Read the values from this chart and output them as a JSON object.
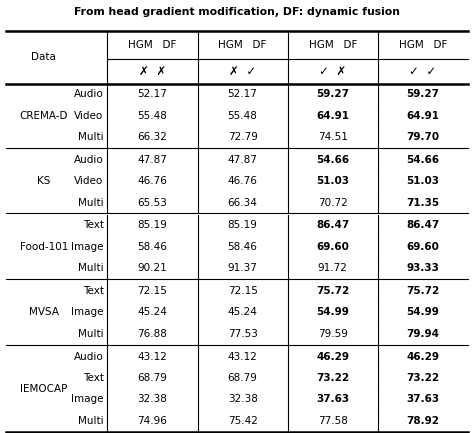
{
  "title": "From head gradient modification, DF: dynamic fusion",
  "col_groups": [
    "HGM  DF",
    "HGM  DF",
    "HGM  DF",
    "HGM  DF"
  ],
  "symbols_row": [
    "✗  ✗",
    "✗  ✓",
    "✓  ✗",
    "✓  ✓"
  ],
  "datasets": [
    {
      "name": "CREMA-D",
      "rows": [
        {
          "modality": "Audio",
          "vals": [
            "52.17",
            "52.17",
            "59.27",
            "59.27"
          ],
          "bold": [
            false,
            false,
            true,
            true
          ]
        },
        {
          "modality": "Video",
          "vals": [
            "55.48",
            "55.48",
            "64.91",
            "64.91"
          ],
          "bold": [
            false,
            false,
            true,
            true
          ]
        },
        {
          "modality": "Multi",
          "vals": [
            "66.32",
            "72.79",
            "74.51",
            "79.70"
          ],
          "bold": [
            false,
            false,
            false,
            true
          ]
        }
      ]
    },
    {
      "name": "KS",
      "rows": [
        {
          "modality": "Audio",
          "vals": [
            "47.87",
            "47.87",
            "54.66",
            "54.66"
          ],
          "bold": [
            false,
            false,
            true,
            true
          ]
        },
        {
          "modality": "Video",
          "vals": [
            "46.76",
            "46.76",
            "51.03",
            "51.03"
          ],
          "bold": [
            false,
            false,
            true,
            true
          ]
        },
        {
          "modality": "Multi",
          "vals": [
            "65.53",
            "66.34",
            "70.72",
            "71.35"
          ],
          "bold": [
            false,
            false,
            false,
            true
          ]
        }
      ]
    },
    {
      "name": "Food-101",
      "rows": [
        {
          "modality": "Text",
          "vals": [
            "85.19",
            "85.19",
            "86.47",
            "86.47"
          ],
          "bold": [
            false,
            false,
            true,
            true
          ]
        },
        {
          "modality": "Image",
          "vals": [
            "58.46",
            "58.46",
            "69.60",
            "69.60"
          ],
          "bold": [
            false,
            false,
            true,
            true
          ]
        },
        {
          "modality": "Multi",
          "vals": [
            "90.21",
            "91.37",
            "91.72",
            "93.33"
          ],
          "bold": [
            false,
            false,
            false,
            true
          ]
        }
      ]
    },
    {
      "name": "MVSA",
      "rows": [
        {
          "modality": "Text",
          "vals": [
            "72.15",
            "72.15",
            "75.72",
            "75.72"
          ],
          "bold": [
            false,
            false,
            true,
            true
          ]
        },
        {
          "modality": "Image",
          "vals": [
            "45.24",
            "45.24",
            "54.99",
            "54.99"
          ],
          "bold": [
            false,
            false,
            true,
            true
          ]
        },
        {
          "modality": "Multi",
          "vals": [
            "76.88",
            "77.53",
            "79.59",
            "79.94"
          ],
          "bold": [
            false,
            false,
            false,
            true
          ]
        }
      ]
    },
    {
      "name": "IEMOCAP",
      "rows": [
        {
          "modality": "Audio",
          "vals": [
            "43.12",
            "43.12",
            "46.29",
            "46.29"
          ],
          "bold": [
            false,
            false,
            true,
            true
          ]
        },
        {
          "modality": "Text",
          "vals": [
            "68.79",
            "68.79",
            "73.22",
            "73.22"
          ],
          "bold": [
            false,
            false,
            true,
            true
          ]
        },
        {
          "modality": "Image",
          "vals": [
            "32.38",
            "32.38",
            "37.63",
            "37.63"
          ],
          "bold": [
            false,
            false,
            true,
            true
          ]
        },
        {
          "modality": "Multi",
          "vals": [
            "74.96",
            "75.42",
            "77.58",
            "78.92"
          ],
          "bold": [
            false,
            false,
            false,
            true
          ]
        }
      ]
    }
  ],
  "bg_color": "#ffffff",
  "text_color": "#000000",
  "fontsize_data": 7.5,
  "fontsize_header": 7.5,
  "fontsize_title": 7.8
}
